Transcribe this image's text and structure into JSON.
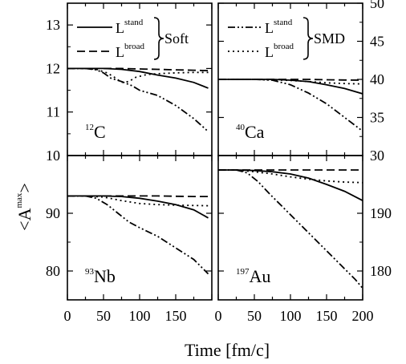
{
  "chart_data": [
    {
      "type": "line",
      "panel": "12C",
      "annotation": {
        "sup": "12",
        "base": "C"
      },
      "xlim": [
        0,
        200
      ],
      "ylim": [
        10,
        13.5
      ],
      "yticks": [
        "10",
        "11",
        "12",
        "13"
      ],
      "yaxis_side": "left",
      "legend": {
        "entries": [
          {
            "label_base": "L",
            "label_sup": "stand",
            "style": "solid"
          },
          {
            "label_base": "L",
            "label_sup": "broad",
            "style": "dashed"
          }
        ],
        "group_label": "Soft",
        "placement": "top-left"
      },
      "series": [
        {
          "style": "solid",
          "x": [
            0,
            25,
            50,
            75,
            100,
            125,
            150,
            175,
            195
          ],
          "y": [
            12.0,
            12.0,
            12.0,
            11.98,
            11.93,
            11.85,
            11.78,
            11.68,
            11.55
          ]
        },
        {
          "style": "dashed",
          "x": [
            0,
            25,
            50,
            75,
            100,
            125,
            150,
            175,
            195
          ],
          "y": [
            12.0,
            12.0,
            12.0,
            12.0,
            11.99,
            11.98,
            11.97,
            11.96,
            11.95
          ]
        },
        {
          "style": "dotted",
          "x": [
            0,
            25,
            40,
            55,
            65,
            75,
            85,
            95,
            110,
            125,
            150,
            175,
            195
          ],
          "y": [
            12.0,
            12.0,
            11.98,
            11.9,
            11.8,
            11.68,
            11.7,
            11.8,
            11.86,
            11.88,
            11.9,
            11.91,
            11.91
          ]
        },
        {
          "style": "dashdotdot",
          "x": [
            0,
            25,
            40,
            50,
            60,
            75,
            90,
            100,
            125,
            150,
            175,
            195
          ],
          "y": [
            12.0,
            12.0,
            11.97,
            11.9,
            11.78,
            11.7,
            11.6,
            11.5,
            11.38,
            11.15,
            10.85,
            10.55
          ]
        }
      ]
    },
    {
      "type": "line",
      "panel": "40Ca",
      "annotation": {
        "sup": "40",
        "base": "Ca"
      },
      "xlim": [
        0,
        200
      ],
      "ylim": [
        30,
        50
      ],
      "yticks": [
        "30",
        "35",
        "40",
        "45",
        "50"
      ],
      "yaxis_side": "right",
      "legend": {
        "entries": [
          {
            "label_base": "L",
            "label_sup": "stand",
            "style": "dashdotdot"
          },
          {
            "label_base": "L",
            "label_sup": "broad",
            "style": "dotted"
          }
        ],
        "group_label": "SMD",
        "placement": "top"
      },
      "series": [
        {
          "style": "solid",
          "x": [
            0,
            25,
            50,
            75,
            100,
            125,
            150,
            175,
            200
          ],
          "y": [
            40.0,
            40.0,
            40.0,
            40.0,
            39.9,
            39.7,
            39.3,
            38.8,
            38.1
          ]
        },
        {
          "style": "dashed",
          "x": [
            0,
            25,
            50,
            75,
            100,
            125,
            150,
            175,
            200
          ],
          "y": [
            40.0,
            40.0,
            40.0,
            40.0,
            40.0,
            40.0,
            39.95,
            39.92,
            39.9
          ]
        },
        {
          "style": "dotted",
          "x": [
            0,
            25,
            50,
            75,
            100,
            125,
            150,
            175,
            200
          ],
          "y": [
            40.0,
            40.0,
            40.0,
            39.95,
            39.85,
            39.7,
            39.55,
            39.45,
            39.4
          ]
        },
        {
          "style": "dashdotdot",
          "x": [
            0,
            25,
            50,
            75,
            100,
            125,
            150,
            175,
            200
          ],
          "y": [
            40.0,
            40.0,
            40.0,
            39.9,
            39.3,
            38.2,
            36.8,
            35.0,
            33.2
          ]
        }
      ]
    },
    {
      "type": "line",
      "panel": "93Nb",
      "annotation": {
        "sup": "93",
        "base": "Nb"
      },
      "xlim": [
        0,
        200
      ],
      "ylim": [
        75,
        100
      ],
      "yticks": [
        "80",
        "90"
      ],
      "yaxis_side": "left",
      "series": [
        {
          "style": "solid",
          "x": [
            0,
            25,
            50,
            75,
            100,
            125,
            150,
            175,
            195
          ],
          "y": [
            93.0,
            93.0,
            93.0,
            92.9,
            92.6,
            92.1,
            91.5,
            90.6,
            89.2
          ]
        },
        {
          "style": "dashed",
          "x": [
            0,
            25,
            50,
            75,
            100,
            125,
            150,
            175,
            195
          ],
          "y": [
            93.0,
            93.0,
            93.0,
            93.0,
            93.0,
            93.0,
            92.95,
            92.9,
            92.9
          ]
        },
        {
          "style": "dotted",
          "x": [
            0,
            25,
            50,
            75,
            100,
            125,
            150,
            175,
            195
          ],
          "y": [
            93.0,
            93.0,
            92.8,
            92.2,
            91.7,
            91.5,
            91.4,
            91.35,
            91.3
          ]
        },
        {
          "style": "dashdotdot",
          "x": [
            0,
            25,
            40,
            55,
            70,
            85,
            100,
            125,
            150,
            175,
            195
          ],
          "y": [
            93.0,
            93.0,
            92.6,
            91.5,
            90.0,
            88.5,
            87.5,
            86.0,
            84.0,
            82.0,
            79.5
          ]
        }
      ]
    },
    {
      "type": "line",
      "panel": "197Au",
      "annotation": {
        "sup": "197",
        "base": "Au"
      },
      "xlim": [
        0,
        200
      ],
      "ylim": [
        175,
        200
      ],
      "yticks": [
        "180",
        "190"
      ],
      "yaxis_side": "right",
      "series": [
        {
          "style": "solid",
          "x": [
            0,
            25,
            50,
            75,
            100,
            125,
            150,
            175,
            200
          ],
          "y": [
            197.5,
            197.5,
            197.4,
            197.2,
            196.8,
            196.1,
            195.0,
            193.8,
            192.2
          ]
        },
        {
          "style": "dashed",
          "x": [
            0,
            25,
            50,
            75,
            100,
            125,
            150,
            175,
            200
          ],
          "y": [
            197.5,
            197.5,
            197.5,
            197.5,
            197.5,
            197.5,
            197.5,
            197.5,
            197.5
          ]
        },
        {
          "style": "dotted",
          "x": [
            0,
            25,
            50,
            75,
            100,
            125,
            150,
            175,
            200
          ],
          "y": [
            197.5,
            197.5,
            197.2,
            196.8,
            196.3,
            195.9,
            195.6,
            195.4,
            195.3
          ]
        },
        {
          "style": "dashdotdot",
          "x": [
            0,
            25,
            40,
            55,
            70,
            90,
            110,
            130,
            150,
            170,
            190,
            200
          ],
          "y": [
            197.5,
            197.5,
            197.0,
            195.5,
            193.5,
            191.0,
            188.5,
            186.0,
            183.5,
            181.0,
            178.5,
            177.0
          ]
        }
      ]
    }
  ],
  "axes": {
    "xlabel": "Time [fm/c]",
    "xticks_left": [
      "0",
      "50",
      "100",
      "150"
    ],
    "xticks_right": [
      "0",
      "50",
      "100",
      "150",
      "200"
    ],
    "ylabel_base": "<A",
    "ylabel_sup": "max",
    "ylabel_close": ">"
  }
}
